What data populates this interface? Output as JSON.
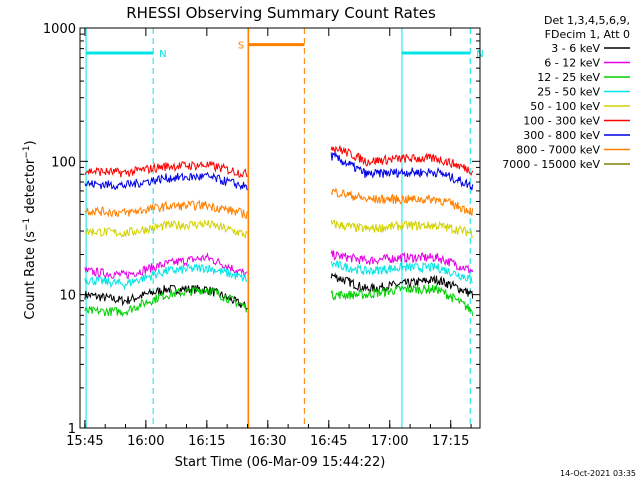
{
  "chart_data": {
    "type": "line",
    "title": "RHESSI Observing Summary Count Rates",
    "xlabel": "Start Time (06-Mar-09 15:44:22)",
    "ylabel": "Count Rate (s⁻¹ detector⁻¹)",
    "ylabel_parts": {
      "main": "Count Rate (s",
      "sup1": "−1",
      "mid": " detector",
      "sup2": "−1",
      "end": ")"
    },
    "yscale": "log",
    "ylim": [
      1,
      1000
    ],
    "xlim_minutes": [
      15.73,
      17.37
    ],
    "x_ticks": [
      "15:45",
      "16:00",
      "16:15",
      "16:30",
      "16:45",
      "17:00",
      "17:15"
    ],
    "x_tick_hours": [
      15.75,
      16.0,
      16.25,
      16.5,
      16.75,
      17.0,
      17.25
    ],
    "y_ticks": [
      "1",
      "10",
      "100",
      "1000"
    ],
    "y_tick_values": [
      1,
      10,
      100,
      1000
    ],
    "legend_header": [
      "Det 1,3,4,5,6,9,",
      "FDecim 1, Att 0"
    ],
    "legend_placement": "right",
    "series": [
      {
        "name": "3 - 6 keV",
        "color": "#000000",
        "gap1": [
          10,
          9,
          11,
          11,
          8
        ],
        "gap2": [
          14,
          11,
          12,
          13,
          10
        ]
      },
      {
        "name": "6 - 12 keV",
        "color": "#e600e6",
        "gap1": [
          15,
          14,
          17,
          19,
          14
        ],
        "gap2": [
          20,
          18,
          19,
          19,
          15
        ]
      },
      {
        "name": "12 - 25 keV",
        "color": "#00d000",
        "gap1": [
          7.5,
          7.5,
          10,
          11,
          8
        ],
        "gap2": [
          10,
          10,
          11,
          11,
          7.5
        ]
      },
      {
        "name": "25 - 50 keV",
        "color": "#00e6e6",
        "gap1": [
          13,
          12,
          15,
          16,
          13
        ],
        "gap2": [
          17,
          15,
          16,
          16,
          13
        ]
      },
      {
        "name": "50 - 100 keV",
        "color": "#d2d200",
        "gap1": [
          30,
          29,
          33,
          34,
          28
        ],
        "gap2": [
          34,
          31,
          33,
          33,
          29
        ]
      },
      {
        "name": "100 - 300 keV",
        "color": "#ff0000",
        "gap1": [
          85,
          82,
          92,
          94,
          80
        ],
        "gap2": [
          130,
          100,
          105,
          105,
          85
        ]
      },
      {
        "name": "300 - 800 keV",
        "color": "#0000e6",
        "gap1": [
          68,
          66,
          75,
          77,
          64
        ],
        "gap2": [
          110,
          80,
          83,
          83,
          65
        ]
      },
      {
        "name": "800 - 7000 keV",
        "color": "#ff8000",
        "gap1": [
          43,
          41,
          46,
          47,
          40
        ],
        "gap2": [
          60,
          52,
          52,
          52,
          42
        ]
      },
      {
        "name": "7000 - 15000 keV",
        "color": "#808000",
        "gap1": [],
        "gap2": []
      }
    ],
    "flags": [
      {
        "label": "N",
        "color": "#00e6e6",
        "start": 15.755,
        "end": 16.03,
        "level": 650
      },
      {
        "label": "N",
        "color": "#00e6e6",
        "start": 17.05,
        "end": 17.33,
        "level": 650
      },
      {
        "label": "S",
        "color": "#ff8000",
        "start": 16.42,
        "end": 16.65,
        "level": 750
      }
    ]
  },
  "timestamp": "14-Oct-2021 03:35"
}
